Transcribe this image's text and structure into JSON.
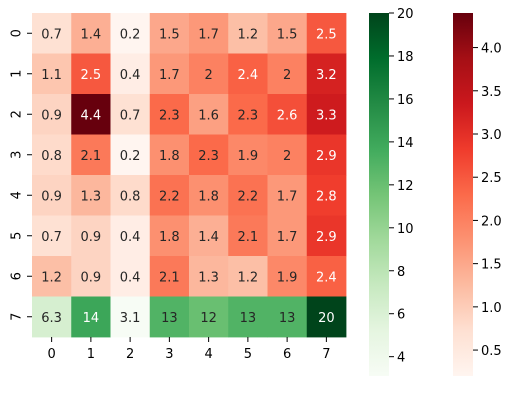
{
  "chart_data": {
    "type": "heatmap",
    "x_ticks": [
      "0",
      "1",
      "2",
      "3",
      "4",
      "5",
      "6",
      "7"
    ],
    "y_ticks": [
      "0",
      "1",
      "2",
      "3",
      "4",
      "5",
      "6",
      "7"
    ],
    "values": [
      [
        0.7,
        1.4,
        0.2,
        1.5,
        1.7,
        1.2,
        1.5,
        2.5
      ],
      [
        1.1,
        2.5,
        0.4,
        1.7,
        2,
        2.4,
        2,
        3.2
      ],
      [
        0.9,
        4.4,
        0.7,
        2.3,
        1.6,
        2.3,
        2.6,
        3.3
      ],
      [
        0.8,
        2.1,
        0.2,
        1.8,
        2.3,
        1.9,
        2,
        2.9
      ],
      [
        0.9,
        1.3,
        0.8,
        2.2,
        1.8,
        2.2,
        1.7,
        2.8
      ],
      [
        0.7,
        0.9,
        0.4,
        1.8,
        1.4,
        2.1,
        1.7,
        2.9
      ],
      [
        1.2,
        0.9,
        0.4,
        2.1,
        1.3,
        1.2,
        1.9,
        2.4
      ],
      [
        6.3,
        14,
        3.1,
        13,
        12,
        13,
        13,
        20
      ]
    ],
    "colormaps": [
      {
        "cmap": "Greens",
        "applies_to_rows": [
          7
        ],
        "range": [
          3.1,
          20
        ],
        "ticks": [
          4,
          6,
          8,
          10,
          12,
          14,
          16,
          18,
          20
        ]
      },
      {
        "cmap": "Reds",
        "applies_to_rows": [
          0,
          1,
          2,
          3,
          4,
          5,
          6
        ],
        "range": [
          0.2,
          4.4
        ],
        "ticks": [
          0.5,
          1.0,
          1.5,
          2.0,
          2.5,
          3.0,
          3.5,
          4.0
        ]
      }
    ],
    "colorbar_tick_labels": {
      "greens": [
        "4",
        "6",
        "8",
        "10",
        "12",
        "14",
        "16",
        "18",
        "20"
      ],
      "reds": [
        "0.5",
        "1.0",
        "1.5",
        "2.0",
        "2.5",
        "3.0",
        "3.5",
        "4.0"
      ]
    },
    "title": "",
    "xlabel": "",
    "ylabel": ""
  }
}
